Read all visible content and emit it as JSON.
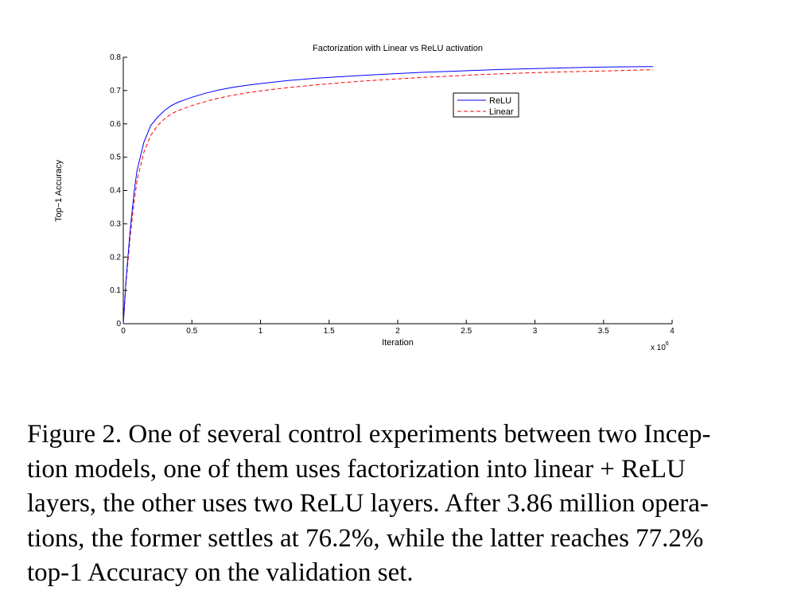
{
  "chart_data": {
    "type": "line",
    "title": "Factorization with Linear vs ReLU activation",
    "xlabel": "Iteration",
    "ylabel": "Top−1 Accuracy",
    "x_multiplier_label": "x 10",
    "x_multiplier_exponent": "6",
    "xlim": [
      0,
      4
    ],
    "ylim": [
      0,
      0.8
    ],
    "x_ticks": [
      "0",
      "0.5",
      "1",
      "1.5",
      "2",
      "2.5",
      "3",
      "3.5",
      "4"
    ],
    "y_ticks": [
      "0",
      "0.1",
      "0.2",
      "0.3",
      "0.4",
      "0.5",
      "0.6",
      "0.7",
      "0.8"
    ],
    "grid": false,
    "legend_position": "upper-middle-right",
    "series": [
      {
        "name": "ReLU",
        "color": "#0000ff",
        "style": "solid",
        "x": [
          0,
          0.02,
          0.05,
          0.08,
          0.1,
          0.15,
          0.2,
          0.25,
          0.3,
          0.35,
          0.4,
          0.5,
          0.6,
          0.7,
          0.8,
          0.9,
          1.0,
          1.2,
          1.4,
          1.6,
          1.8,
          2.0,
          2.2,
          2.4,
          2.6,
          2.8,
          3.0,
          3.2,
          3.4,
          3.6,
          3.8,
          3.86
        ],
        "values": [
          0,
          0.13,
          0.28,
          0.4,
          0.46,
          0.545,
          0.595,
          0.62,
          0.64,
          0.655,
          0.665,
          0.68,
          0.692,
          0.702,
          0.71,
          0.716,
          0.721,
          0.73,
          0.737,
          0.742,
          0.747,
          0.751,
          0.755,
          0.758,
          0.761,
          0.764,
          0.766,
          0.768,
          0.77,
          0.771,
          0.772,
          0.772
        ]
      },
      {
        "name": "Linear",
        "color": "#ff0000",
        "style": "dashed",
        "x": [
          0,
          0.02,
          0.05,
          0.08,
          0.1,
          0.15,
          0.2,
          0.25,
          0.3,
          0.35,
          0.4,
          0.5,
          0.6,
          0.7,
          0.8,
          0.9,
          1.0,
          1.2,
          1.4,
          1.6,
          1.8,
          2.0,
          2.2,
          2.4,
          2.6,
          2.8,
          3.0,
          3.2,
          3.4,
          3.6,
          3.8,
          3.86
        ],
        "values": [
          0,
          0.12,
          0.26,
          0.37,
          0.43,
          0.515,
          0.565,
          0.595,
          0.615,
          0.63,
          0.64,
          0.655,
          0.667,
          0.678,
          0.686,
          0.693,
          0.699,
          0.709,
          0.717,
          0.724,
          0.73,
          0.735,
          0.74,
          0.744,
          0.748,
          0.751,
          0.754,
          0.756,
          0.758,
          0.76,
          0.762,
          0.762
        ]
      }
    ]
  },
  "caption": {
    "lines": [
      "Figure 2. One of several control experiments between two Incep-",
      "tion models, one of them uses factorization into linear + ReLU",
      "layers, the other uses two ReLU layers. After 3.86 million opera-",
      "tions, the former settles at 76.2%, while the latter reaches 77.2%",
      "top-1 Accuracy on the validation set."
    ]
  }
}
